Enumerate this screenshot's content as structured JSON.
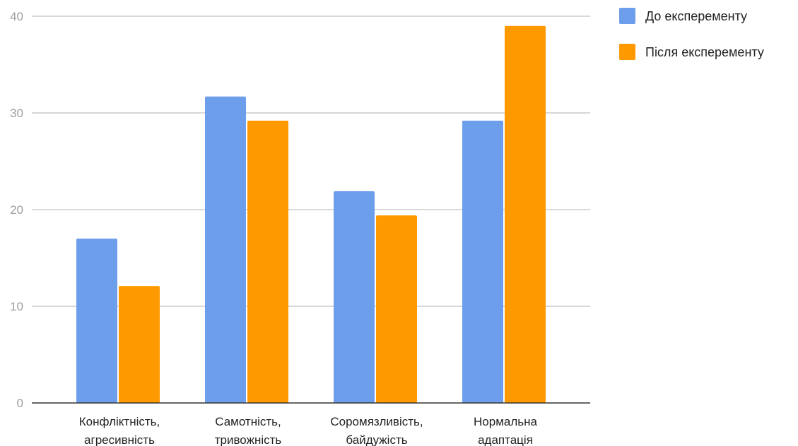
{
  "chart_data": {
    "type": "bar",
    "categories": [
      [
        "Конфліктність,",
        "агресивність"
      ],
      [
        "Самотність,",
        "тривожність"
      ],
      [
        "Соромязливість,",
        "байдужість"
      ],
      [
        "Нормальна",
        "адаптація"
      ]
    ],
    "series": [
      {
        "name": "До експеременту",
        "values": [
          17,
          31.7,
          21.9,
          29.2
        ],
        "color": "#6d9eeb"
      },
      {
        "name": "Після експеременту",
        "values": [
          12.1,
          29.2,
          19.4,
          39
        ],
        "color": "#ff9900"
      }
    ],
    "ylim": [
      0,
      40
    ],
    "yticks": [
      "0",
      "10",
      "20",
      "30",
      "40"
    ],
    "grid": true,
    "legend": "top-right",
    "title": "",
    "xlabel": "",
    "ylabel": ""
  }
}
